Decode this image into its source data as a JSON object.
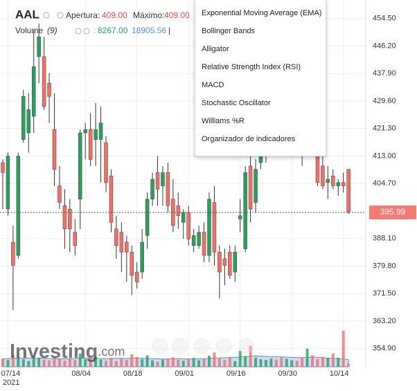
{
  "chart_data": {
    "type": "candlestick",
    "title": "AAL",
    "ohlc_header": [
      {
        "label": "Apertura:",
        "value": "409.00"
      },
      {
        "label": "Máximo:",
        "value": "409.00"
      }
    ],
    "volume_header": {
      "name": "Volume",
      "period": "(9)",
      "separator": ":",
      "value": "8267.00",
      "average": "18905.56",
      "cursor": "|"
    },
    "categories": [
      null,
      "07/14",
      null,
      null,
      null,
      null,
      null,
      null,
      null,
      null,
      null,
      null,
      null,
      null,
      null,
      null,
      "08/04",
      null,
      null,
      null,
      null,
      null,
      null,
      null,
      null,
      null,
      "08/18",
      null,
      null,
      null,
      null,
      null,
      null,
      null,
      null,
      null,
      "09/01",
      null,
      null,
      null,
      null,
      null,
      null,
      null,
      null,
      null,
      "09/16",
      null,
      null,
      null,
      null,
      null,
      null,
      null,
      null,
      null,
      "09/30",
      null,
      null,
      null,
      null,
      null,
      null,
      null,
      null,
      null,
      "10/14",
      null
    ],
    "year_label": "2021",
    "open": [
      411,
      397,
      387,
      383,
      418,
      420,
      425,
      443,
      443,
      435,
      421,
      404,
      398,
      397,
      390,
      400,
      420,
      421,
      418,
      418,
      417,
      407,
      391,
      390,
      387,
      384,
      378,
      378,
      389,
      400,
      408,
      404,
      408,
      400,
      398,
      393,
      396,
      386,
      386,
      390,
      383,
      399,
      384,
      382,
      384,
      378,
      394,
      385,
      410,
      399,
      411,
      413,
      422,
      426,
      423,
      419,
      421,
      427,
      422,
      416,
      421,
      416,
      410,
      405,
      407,
      404,
      405,
      409
    ],
    "high": [
      412,
      414,
      392,
      414,
      433,
      432,
      451,
      453,
      449,
      438,
      432,
      410,
      403,
      400,
      394,
      421,
      423,
      426,
      429,
      428,
      419,
      409,
      395,
      393,
      389,
      386,
      381,
      391,
      402,
      408,
      413,
      410,
      411,
      406,
      402,
      397,
      398,
      391,
      392,
      393,
      402,
      404,
      386,
      385,
      386,
      386,
      400,
      410,
      418,
      412,
      420,
      424,
      428,
      431,
      427,
      424,
      429,
      432,
      426,
      423,
      424,
      418,
      413,
      410,
      409,
      406,
      408,
      409
    ],
    "low": [
      397,
      395,
      366.5,
      382,
      417,
      414,
      420,
      435,
      427,
      423,
      404,
      397,
      385,
      384,
      383,
      391,
      412,
      410,
      410,
      405,
      402,
      390,
      382,
      378,
      375,
      371,
      373,
      376,
      385,
      398,
      398,
      398,
      396,
      390,
      391,
      388,
      386,
      384,
      385,
      381,
      381,
      380,
      370,
      374,
      376,
      375,
      390,
      384,
      393,
      396,
      409,
      411,
      418,
      421,
      417,
      414,
      419,
      420,
      410,
      414,
      417,
      404,
      403,
      400,
      403,
      401,
      402,
      395.5
    ],
    "close": [
      408,
      413,
      380,
      413,
      431,
      427,
      440,
      449,
      428,
      431,
      409,
      399,
      391,
      391,
      386,
      420,
      421,
      412,
      421,
      423,
      405,
      393,
      386,
      384,
      384,
      377,
      375,
      387,
      400,
      406,
      403,
      408,
      398,
      392,
      395,
      396,
      388,
      389,
      390,
      383,
      400,
      384,
      378,
      380,
      377,
      384,
      395,
      408,
      397,
      409,
      413,
      422,
      426,
      423,
      419,
      421,
      427,
      422,
      416,
      421,
      420,
      405,
      404,
      406,
      404,
      405,
      404,
      395.99
    ],
    "volume": [
      22000,
      18000,
      30000,
      25000,
      20000,
      15000,
      28000,
      24000,
      19000,
      17000,
      26000,
      21000,
      16000,
      23000,
      18000,
      35000,
      20000,
      22000,
      27000,
      19000,
      16000,
      24000,
      15000,
      21000,
      18000,
      33000,
      26000,
      20000,
      30000,
      17000,
      14000,
      19000,
      22000,
      25000,
      18000,
      16000,
      21000,
      24000,
      17000,
      20000,
      29000,
      38000,
      22000,
      18000,
      26000,
      15000,
      42000,
      28000,
      55000,
      24000,
      20000,
      18000,
      22000,
      19000,
      25000,
      21000,
      17000,
      16000,
      23000,
      48000,
      30000,
      20000,
      26000,
      22000,
      35000,
      24000,
      95000,
      8267
    ],
    "volume_ma": [
      21000,
      21500,
      22000,
      22500,
      23000,
      22500,
      22000,
      22500,
      23000,
      22000,
      21500,
      21000,
      21000,
      21500,
      22000,
      23000,
      23000,
      22500,
      22000,
      21500,
      21000,
      21500,
      22000,
      22500,
      22000,
      22500,
      23000,
      22500,
      22000,
      21500,
      21000,
      20500,
      20500,
      21000,
      21500,
      21000,
      20500,
      20500,
      21000,
      21500,
      22000,
      23000,
      23500,
      24000,
      24500,
      25000,
      26000,
      27000,
      28000,
      28500,
      28000,
      27500,
      27000,
      26500,
      26000,
      25500,
      25000,
      24500,
      24000,
      25000,
      25500,
      25000,
      24000,
      23000,
      22000,
      21000,
      20500,
      18905.56
    ],
    "ylim": [
      349.4,
      460.1
    ],
    "yticks": [
      {
        "value": 454.5,
        "label": "454.50"
      },
      {
        "value": 446.2,
        "label": "446.20"
      },
      {
        "value": 437.9,
        "label": "437.90"
      },
      {
        "value": 429.6,
        "label": "429.60"
      },
      {
        "value": 421.3,
        "label": "421.30"
      },
      {
        "value": 413,
        "label": "413.00"
      },
      {
        "value": 404.7,
        "label": "404.70"
      },
      {
        "value": 388.1,
        "label": "388.10"
      },
      {
        "value": 379.8,
        "label": "379.80"
      },
      {
        "value": 371.5,
        "label": "371.50"
      },
      {
        "value": 363.2,
        "label": "363.20"
      },
      {
        "value": 354.9,
        "label": "354.90"
      }
    ],
    "last_price": {
      "value": 395.99,
      "label": "395.99"
    },
    "grid": true,
    "up_color": "#2e9e5e",
    "down_color": "#ef6f69",
    "volume_ma_color": "#5b8fd6"
  },
  "watermark": {
    "brand": "Investing",
    "suffix": ".com"
  },
  "menu": {
    "items": [
      "Exponential Moving Average (EMA)",
      "Bollinger Bands",
      "Alligator",
      "Relative Strength Index (RSI)",
      "MACD",
      "Stochastic Oscillator",
      "Williams %R",
      "Organizador de indicadores"
    ]
  }
}
